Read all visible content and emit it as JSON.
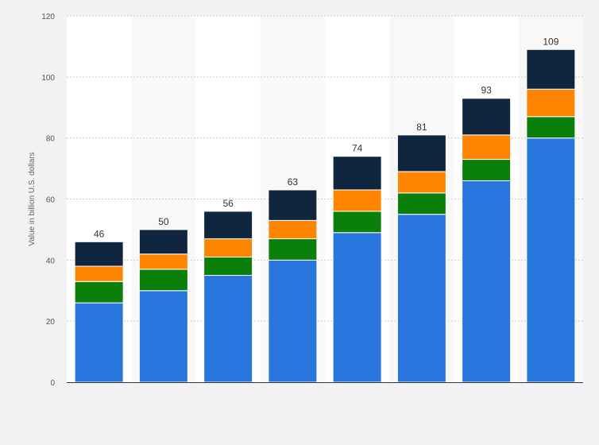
{
  "chart_data": {
    "type": "bar",
    "stacked": true,
    "title": "",
    "xlabel": "",
    "ylabel": "Value in billion U.S. dollars",
    "ylim": [
      0,
      120
    ],
    "yticks": [
      0,
      20,
      40,
      60,
      80,
      100,
      120
    ],
    "grid": true,
    "legend": "none",
    "categories": [
      "",
      "",
      "",
      "",
      "",
      "",
      "",
      ""
    ],
    "totals": [
      46,
      50,
      56,
      63,
      74,
      81,
      93,
      109
    ],
    "series": [
      {
        "values": [
          26,
          30,
          35,
          40,
          49,
          55,
          66,
          80
        ],
        "color": "#2876dd"
      },
      {
        "values": [
          7,
          7,
          6,
          7,
          7,
          7,
          7,
          7
        ],
        "color": "#0a7f0a"
      },
      {
        "values": [
          5,
          5,
          6,
          6,
          7,
          7,
          8,
          9
        ],
        "color": "#ff8400"
      },
      {
        "values": [
          8,
          8,
          9,
          10,
          11,
          12,
          12,
          13
        ],
        "color": "#10263f"
      }
    ],
    "colors": {
      "band": "#f8f8f8",
      "plot_background": "#ffffff",
      "page_background": "#f2f2f5",
      "grid": "#cfcfcf",
      "axis_line": "#333333",
      "label_text": "#333333",
      "tick_text": "#555555",
      "ylabel_text": "#666666"
    }
  }
}
